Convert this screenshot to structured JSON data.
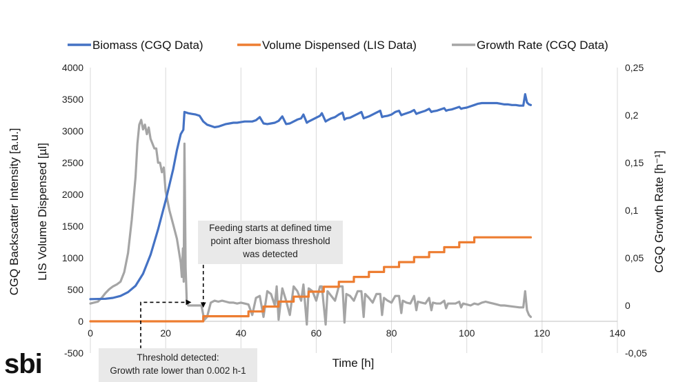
{
  "chart_data": {
    "type": "line",
    "title": "",
    "legend_position": "top",
    "xlabel": "Time [h]",
    "ylabel_left": [
      "CGQ Backscatter Intensity [a.u.]",
      "LIS Volume Dispensed [µl]"
    ],
    "ylabel_right": "CGQ Growth Rate [h⁻¹]",
    "xlim": [
      0,
      140
    ],
    "ylim_left": [
      -500,
      4000
    ],
    "ylim_right": [
      -0.05,
      0.25
    ],
    "x_ticks": [
      "0",
      "20",
      "40",
      "60",
      "80",
      "100",
      "120",
      "140"
    ],
    "y_left_ticks": [
      "-500",
      "0",
      "500",
      "1000",
      "1500",
      "2000",
      "2500",
      "3000",
      "3500",
      "4000"
    ],
    "y_right_ticks": [
      "-0,05",
      "0",
      "0,05",
      "0,1",
      "0,15",
      "0,2",
      "0,25"
    ],
    "grid": "vertical",
    "series": [
      {
        "name": "Biomass (CGQ Data)",
        "axis": "left",
        "color": "#4472c4",
        "points": [
          [
            0,
            350
          ],
          [
            4,
            355
          ],
          [
            6,
            370
          ],
          [
            8,
            400
          ],
          [
            10,
            460
          ],
          [
            12,
            560
          ],
          [
            14,
            750
          ],
          [
            16,
            1050
          ],
          [
            18,
            1450
          ],
          [
            20,
            1900
          ],
          [
            22,
            2400
          ],
          [
            23,
            2700
          ],
          [
            24,
            2950
          ],
          [
            24.7,
            3020
          ],
          [
            25,
            3300
          ],
          [
            26,
            3280
          ],
          [
            27,
            3270
          ],
          [
            28,
            3260
          ],
          [
            29,
            3240
          ],
          [
            30,
            3150
          ],
          [
            31,
            3100
          ],
          [
            32,
            3080
          ],
          [
            33,
            3060
          ],
          [
            34,
            3070
          ],
          [
            35,
            3090
          ],
          [
            36,
            3110
          ],
          [
            37,
            3120
          ],
          [
            38,
            3130
          ],
          [
            39,
            3130
          ],
          [
            40,
            3140
          ],
          [
            41,
            3150
          ],
          [
            42,
            3150
          ],
          [
            43,
            3150
          ],
          [
            44,
            3170
          ],
          [
            45,
            3220
          ],
          [
            46,
            3120
          ],
          [
            47,
            3110
          ],
          [
            48,
            3120
          ],
          [
            49,
            3130
          ],
          [
            50,
            3160
          ],
          [
            51,
            3230
          ],
          [
            52,
            3110
          ],
          [
            53,
            3120
          ],
          [
            54,
            3150
          ],
          [
            55,
            3180
          ],
          [
            56,
            3200
          ],
          [
            56.6,
            3260
          ],
          [
            57.5,
            3130
          ],
          [
            58,
            3150
          ],
          [
            59,
            3180
          ],
          [
            60,
            3210
          ],
          [
            61,
            3240
          ],
          [
            61.5,
            3280
          ],
          [
            62.5,
            3150
          ],
          [
            63,
            3170
          ],
          [
            64,
            3200
          ],
          [
            65,
            3220
          ],
          [
            66,
            3260
          ],
          [
            67,
            3290
          ],
          [
            67.5,
            3180
          ],
          [
            68,
            3200
          ],
          [
            69,
            3210
          ],
          [
            70,
            3240
          ],
          [
            71,
            3270
          ],
          [
            72,
            3300
          ],
          [
            72.6,
            3200
          ],
          [
            73,
            3210
          ],
          [
            74,
            3230
          ],
          [
            75,
            3260
          ],
          [
            76,
            3290
          ],
          [
            77,
            3320
          ],
          [
            77.5,
            3220
          ],
          [
            78,
            3230
          ],
          [
            79,
            3240
          ],
          [
            80,
            3260
          ],
          [
            81,
            3300
          ],
          [
            82,
            3320
          ],
          [
            82.6,
            3250
          ],
          [
            83,
            3260
          ],
          [
            84,
            3280
          ],
          [
            85,
            3300
          ],
          [
            86,
            3330
          ],
          [
            86.6,
            3270
          ],
          [
            87,
            3280
          ],
          [
            88,
            3300
          ],
          [
            89,
            3320
          ],
          [
            90,
            3350
          ],
          [
            90.6,
            3300
          ],
          [
            91,
            3310
          ],
          [
            92,
            3320
          ],
          [
            93,
            3340
          ],
          [
            94,
            3360
          ],
          [
            94.5,
            3320
          ],
          [
            95,
            3330
          ],
          [
            96,
            3340
          ],
          [
            97,
            3360
          ],
          [
            98,
            3380
          ],
          [
            98.5,
            3350
          ],
          [
            99,
            3360
          ],
          [
            100,
            3370
          ],
          [
            101,
            3390
          ],
          [
            102,
            3410
          ],
          [
            103,
            3430
          ],
          [
            104,
            3440
          ],
          [
            105,
            3440
          ],
          [
            106,
            3440
          ],
          [
            107,
            3440
          ],
          [
            108,
            3440
          ],
          [
            109,
            3430
          ],
          [
            110,
            3420
          ],
          [
            111,
            3420
          ],
          [
            112,
            3410
          ],
          [
            113,
            3410
          ],
          [
            114,
            3400
          ],
          [
            115,
            3400
          ],
          [
            115.5,
            3580
          ],
          [
            116,
            3450
          ],
          [
            116.5,
            3420
          ],
          [
            117,
            3410
          ]
        ]
      },
      {
        "name": "Volume Dispensed (LIS Data)",
        "axis": "left",
        "color": "#ed7d31",
        "points": [
          [
            0,
            0
          ],
          [
            30,
            0
          ],
          [
            30,
            80
          ],
          [
            42,
            80
          ],
          [
            42,
            155
          ],
          [
            46,
            155
          ],
          [
            46,
            233
          ],
          [
            50,
            233
          ],
          [
            50,
            311
          ],
          [
            54,
            311
          ],
          [
            54,
            389
          ],
          [
            58,
            389
          ],
          [
            58,
            467
          ],
          [
            62,
            467
          ],
          [
            62,
            545
          ],
          [
            66,
            545
          ],
          [
            66,
            623
          ],
          [
            70,
            623
          ],
          [
            70,
            700
          ],
          [
            74,
            700
          ],
          [
            74,
            778
          ],
          [
            78,
            778
          ],
          [
            78,
            856
          ],
          [
            82,
            856
          ],
          [
            82,
            934
          ],
          [
            86,
            934
          ],
          [
            86,
            1012
          ],
          [
            90,
            1012
          ],
          [
            90,
            1090
          ],
          [
            94,
            1090
          ],
          [
            94,
            1168
          ],
          [
            98,
            1168
          ],
          [
            98,
            1246
          ],
          [
            102,
            1246
          ],
          [
            102,
            1324
          ],
          [
            117,
            1324
          ]
        ]
      },
      {
        "name": "Growth Rate (CGQ Data)",
        "axis": "right",
        "color": "#a5a5a5",
        "points": [
          [
            0,
            0.002
          ],
          [
            2,
            0.004
          ],
          [
            3,
            0.008
          ],
          [
            4,
            0.013
          ],
          [
            5,
            0.017
          ],
          [
            6,
            0.02
          ],
          [
            7,
            0.022
          ],
          [
            8,
            0.025
          ],
          [
            9,
            0.035
          ],
          [
            10,
            0.055
          ],
          [
            11,
            0.09
          ],
          [
            12,
            0.135
          ],
          [
            12.5,
            0.17
          ],
          [
            13,
            0.19
          ],
          [
            13.5,
            0.195
          ],
          [
            14,
            0.185
          ],
          [
            14.5,
            0.19
          ],
          [
            15,
            0.18
          ],
          [
            15.5,
            0.187
          ],
          [
            16,
            0.175
          ],
          [
            17,
            0.165
          ],
          [
            17.5,
            0.165
          ],
          [
            18,
            0.15
          ],
          [
            18.5,
            0.15
          ],
          [
            19,
            0.14
          ],
          [
            19.5,
            0.145
          ],
          [
            20,
            0.12
          ],
          [
            21,
            0.1
          ],
          [
            22,
            0.085
          ],
          [
            23,
            0.07
          ],
          [
            24,
            0.045
          ],
          [
            24.3,
            0.03
          ],
          [
            24.6,
            0.06
          ],
          [
            24.8,
            0.025
          ],
          [
            25,
            0.17
          ],
          [
            25.3,
            0.04
          ],
          [
            25.6,
            0.005
          ],
          [
            26,
            0.0
          ],
          [
            28,
            0.0
          ],
          [
            29.5,
            0.0
          ],
          [
            30,
            -0.01
          ],
          [
            30.3,
            -0.015
          ],
          [
            31,
            -0.012
          ],
          [
            32,
            0.003
          ],
          [
            33,
            0.005
          ],
          [
            34,
            0.004
          ],
          [
            35,
            0.005
          ],
          [
            36,
            0.004
          ],
          [
            37,
            0.003
          ],
          [
            38,
            0.003
          ],
          [
            39,
            0.002
          ],
          [
            40,
            0.003
          ],
          [
            41,
            0.002
          ],
          [
            42,
            0.001
          ],
          [
            43,
            -0.01
          ],
          [
            44,
            0.008
          ],
          [
            45,
            0.01
          ],
          [
            46,
            -0.012
          ],
          [
            47,
            0.015
          ],
          [
            48,
            0.012
          ],
          [
            49,
            0.0
          ],
          [
            49.5,
            0.02
          ],
          [
            50,
            -0.015
          ],
          [
            51,
            0.018
          ],
          [
            52,
            0.005
          ],
          [
            53,
            -0.01
          ],
          [
            54,
            0.02
          ],
          [
            55,
            0.015
          ],
          [
            56,
            0.005
          ],
          [
            56.6,
            0.022
          ],
          [
            57.5,
            -0.02
          ],
          [
            58,
            0.018
          ],
          [
            59,
            0.015
          ],
          [
            60,
            0.005
          ],
          [
            61,
            0.02
          ],
          [
            61.5,
            0.02
          ],
          [
            62.5,
            -0.02
          ],
          [
            63,
            0.015
          ],
          [
            64,
            0.01
          ],
          [
            65,
            0.005
          ],
          [
            66,
            0.02
          ],
          [
            67,
            0.02
          ],
          [
            67.5,
            -0.018
          ],
          [
            68,
            0.012
          ],
          [
            69,
            0.01
          ],
          [
            70,
            0.005
          ],
          [
            71,
            0.015
          ],
          [
            72,
            0.015
          ],
          [
            72.6,
            -0.012
          ],
          [
            73,
            0.012
          ],
          [
            74,
            0.008
          ],
          [
            75,
            0.003
          ],
          [
            76,
            0.012
          ],
          [
            77,
            0.012
          ],
          [
            77.5,
            -0.01
          ],
          [
            78,
            0.008
          ],
          [
            79,
            0.005
          ],
          [
            80,
            0.003
          ],
          [
            81,
            0.01
          ],
          [
            82,
            0.01
          ],
          [
            82.6,
            -0.008
          ],
          [
            83,
            0.005
          ],
          [
            84,
            0.003
          ],
          [
            85,
            0.002
          ],
          [
            86,
            0.01
          ],
          [
            86.6,
            -0.005
          ],
          [
            87,
            0.004
          ],
          [
            88,
            0.003
          ],
          [
            89,
            0.002
          ],
          [
            90,
            0.008
          ],
          [
            90.6,
            -0.005
          ],
          [
            91,
            0.003
          ],
          [
            92,
            0.002
          ],
          [
            93,
            0.002
          ],
          [
            94,
            0.005
          ],
          [
            94.5,
            -0.003
          ],
          [
            95,
            0.002
          ],
          [
            96,
            0.002
          ],
          [
            97,
            0.002
          ],
          [
            98,
            0.004
          ],
          [
            98.5,
            -0.002
          ],
          [
            99,
            0.002
          ],
          [
            100,
            0.001
          ],
          [
            101,
            0.0
          ],
          [
            102,
            0.002
          ],
          [
            103,
            0.001
          ],
          [
            104,
            0.003
          ],
          [
            105,
            0.004
          ],
          [
            106,
            0.003
          ],
          [
            107,
            0.002
          ],
          [
            108,
            0.001
          ],
          [
            109,
            0.0
          ],
          [
            110,
            0.0
          ],
          [
            112,
            -0.001
          ],
          [
            114,
            -0.002
          ],
          [
            115,
            -0.002
          ],
          [
            115.5,
            0.015
          ],
          [
            116,
            -0.005
          ],
          [
            116.5,
            -0.01
          ],
          [
            117,
            -0.012
          ]
        ]
      }
    ],
    "annotations": [
      {
        "id": "feeding",
        "text": "Feeding starts at defined time point after biomass threshold was detected",
        "lines": [
          "Feeding starts at defined time",
          "point after biomass threshold",
          "was detected"
        ],
        "arrow_to": [
          30,
          410
        ]
      },
      {
        "id": "threshold",
        "text": "Threshold detected: Growth rate lower than 0.002 h-1",
        "lines": [
          "Threshold detected:",
          "Growth rate lower than 0.002 h-1"
        ],
        "arrow_to": [
          25,
          300
        ]
      }
    ]
  },
  "logo": {
    "text": "sbi"
  }
}
